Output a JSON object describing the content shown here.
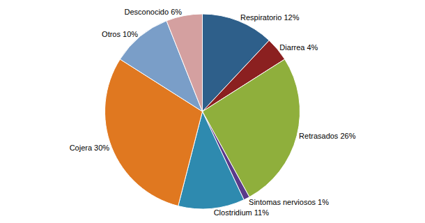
{
  "chart_data": {
    "type": "pie",
    "categories": [
      "Respiratorio",
      "Diarrea",
      "Retrasados",
      "Sintomas nerviosos",
      "Clostridium",
      "Cojera",
      "Otros",
      "Desconocido"
    ],
    "values": [
      12,
      4,
      26,
      1,
      11,
      30,
      10,
      6
    ],
    "value_labels": [
      "Respiratorio 12%",
      "Diarrea 4%",
      "Retrasados 26%",
      "Sintomas nerviosos 1%",
      "Clostridium 11%",
      "Cojera 30%",
      "Otros 10%",
      "Desconocido 6%"
    ],
    "colors": [
      "#2E5F8A",
      "#8B2020",
      "#8FAF3C",
      "#5B3A8A",
      "#2E8AAF",
      "#E07820",
      "#7A9EC8",
      "#D4A0A0"
    ],
    "data_labels": true,
    "legend": false
  }
}
